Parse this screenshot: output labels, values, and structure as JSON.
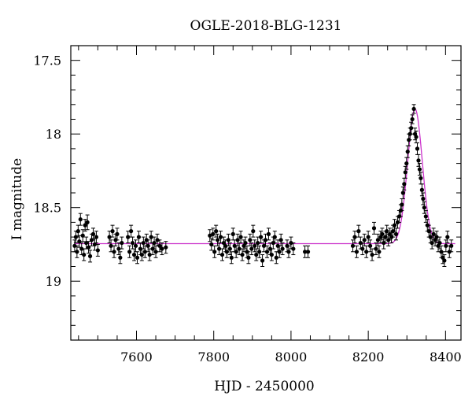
{
  "chart_data": {
    "type": "scatter",
    "title": "OGLE-2018-BLG-1231",
    "xlabel": "HJD - 2450000",
    "ylabel": "I magnitude",
    "xlim": [
      7430,
      8440
    ],
    "ylim": [
      19.4,
      17.4
    ],
    "y_inverted": true,
    "x_ticks": [
      7600,
      7800,
      8000,
      8200,
      8400
    ],
    "y_ticks": [
      17.5,
      18,
      18.5,
      19
    ],
    "y_tick_labels": [
      "17.5",
      "18",
      "18.5",
      "19"
    ],
    "colors": {
      "points": "#000000",
      "model": "#cc33cc"
    },
    "series": [
      {
        "kind": "points_with_errorbars",
        "points": [
          [
            7440,
            18.76,
            0.04
          ],
          [
            7443,
            18.7,
            0.04
          ],
          [
            7446,
            18.8,
            0.04
          ],
          [
            7449,
            18.66,
            0.04
          ],
          [
            7452,
            18.73,
            0.04
          ],
          [
            7455,
            18.58,
            0.04
          ],
          [
            7458,
            18.78,
            0.04
          ],
          [
            7461,
            18.69,
            0.04
          ],
          [
            7464,
            18.82,
            0.04
          ],
          [
            7467,
            18.62,
            0.04
          ],
          [
            7470,
            18.74,
            0.04
          ],
          [
            7473,
            18.6,
            0.05
          ],
          [
            7476,
            18.77,
            0.04
          ],
          [
            7480,
            18.83,
            0.04
          ],
          [
            7484,
            18.72,
            0.04
          ],
          [
            7488,
            18.68,
            0.04
          ],
          [
            7492,
            18.75,
            0.04
          ],
          [
            7496,
            18.7,
            0.04
          ],
          [
            7500,
            18.79,
            0.04
          ],
          [
            7530,
            18.7,
            0.04
          ],
          [
            7534,
            18.76,
            0.04
          ],
          [
            7538,
            18.66,
            0.04
          ],
          [
            7542,
            18.8,
            0.04
          ],
          [
            7546,
            18.72,
            0.04
          ],
          [
            7550,
            18.68,
            0.04
          ],
          [
            7554,
            18.78,
            0.04
          ],
          [
            7558,
            18.84,
            0.04
          ],
          [
            7562,
            18.74,
            0.04
          ],
          [
            7578,
            18.7,
            0.04
          ],
          [
            7582,
            18.8,
            0.04
          ],
          [
            7586,
            18.66,
            0.04
          ],
          [
            7590,
            18.74,
            0.04
          ],
          [
            7594,
            18.82,
            0.04
          ],
          [
            7598,
            18.76,
            0.04
          ],
          [
            7602,
            18.84,
            0.04
          ],
          [
            7606,
            18.7,
            0.04
          ],
          [
            7610,
            18.78,
            0.04
          ],
          [
            7614,
            18.82,
            0.04
          ],
          [
            7618,
            18.74,
            0.04
          ],
          [
            7622,
            18.8,
            0.04
          ],
          [
            7626,
            18.72,
            0.04
          ],
          [
            7630,
            18.76,
            0.04
          ],
          [
            7634,
            18.82,
            0.04
          ],
          [
            7638,
            18.7,
            0.04
          ],
          [
            7642,
            18.78,
            0.04
          ],
          [
            7646,
            18.74,
            0.04
          ],
          [
            7650,
            18.8,
            0.04
          ],
          [
            7654,
            18.72,
            0.04
          ],
          [
            7660,
            18.76,
            0.04
          ],
          [
            7666,
            18.78,
            0.04
          ],
          [
            7676,
            18.77,
            0.04
          ],
          [
            7790,
            18.69,
            0.04
          ],
          [
            7794,
            18.75,
            0.04
          ],
          [
            7798,
            18.68,
            0.04
          ],
          [
            7802,
            18.8,
            0.04
          ],
          [
            7806,
            18.66,
            0.04
          ],
          [
            7810,
            18.72,
            0.04
          ],
          [
            7814,
            18.78,
            0.04
          ],
          [
            7818,
            18.7,
            0.04
          ],
          [
            7822,
            18.82,
            0.04
          ],
          [
            7826,
            18.74,
            0.04
          ],
          [
            7830,
            18.76,
            0.04
          ],
          [
            7834,
            18.8,
            0.04
          ],
          [
            7838,
            18.72,
            0.04
          ],
          [
            7842,
            18.78,
            0.04
          ],
          [
            7846,
            18.84,
            0.04
          ],
          [
            7850,
            18.68,
            0.04
          ],
          [
            7854,
            18.76,
            0.04
          ],
          [
            7858,
            18.8,
            0.04
          ],
          [
            7862,
            18.72,
            0.04
          ],
          [
            7866,
            18.78,
            0.04
          ],
          [
            7870,
            18.7,
            0.04
          ],
          [
            7874,
            18.82,
            0.04
          ],
          [
            7878,
            18.76,
            0.04
          ],
          [
            7882,
            18.74,
            0.04
          ],
          [
            7886,
            18.8,
            0.04
          ],
          [
            7890,
            18.84,
            0.04
          ],
          [
            7894,
            18.72,
            0.04
          ],
          [
            7898,
            18.78,
            0.04
          ],
          [
            7902,
            18.66,
            0.04
          ],
          [
            7906,
            18.76,
            0.04
          ],
          [
            7910,
            18.82,
            0.04
          ],
          [
            7914,
            18.74,
            0.04
          ],
          [
            7918,
            18.8,
            0.04
          ],
          [
            7922,
            18.7,
            0.04
          ],
          [
            7926,
            18.86,
            0.04
          ],
          [
            7930,
            18.76,
            0.04
          ],
          [
            7934,
            18.72,
            0.04
          ],
          [
            7938,
            18.8,
            0.04
          ],
          [
            7942,
            18.68,
            0.04
          ],
          [
            7946,
            18.78,
            0.04
          ],
          [
            7950,
            18.82,
            0.04
          ],
          [
            7954,
            18.74,
            0.04
          ],
          [
            7958,
            18.7,
            0.04
          ],
          [
            7962,
            18.84,
            0.04
          ],
          [
            7966,
            18.76,
            0.04
          ],
          [
            7970,
            18.8,
            0.04
          ],
          [
            7974,
            18.72,
            0.04
          ],
          [
            7978,
            18.78,
            0.04
          ],
          [
            7990,
            18.76,
            0.04
          ],
          [
            7994,
            18.8,
            0.04
          ],
          [
            8000,
            18.74,
            0.04
          ],
          [
            8006,
            18.78,
            0.04
          ],
          [
            8036,
            18.8,
            0.04
          ],
          [
            8044,
            18.8,
            0.04
          ],
          [
            8160,
            18.76,
            0.04
          ],
          [
            8165,
            18.7,
            0.04
          ],
          [
            8170,
            18.8,
            0.04
          ],
          [
            8175,
            18.66,
            0.04
          ],
          [
            8180,
            18.74,
            0.04
          ],
          [
            8185,
            18.78,
            0.04
          ],
          [
            8190,
            18.72,
            0.04
          ],
          [
            8195,
            18.8,
            0.04
          ],
          [
            8200,
            18.7,
            0.04
          ],
          [
            8205,
            18.76,
            0.04
          ],
          [
            8210,
            18.82,
            0.04
          ],
          [
            8215,
            18.64,
            0.04
          ],
          [
            8220,
            18.78,
            0.04
          ],
          [
            8225,
            18.72,
            0.04
          ],
          [
            8228,
            18.8,
            0.04
          ],
          [
            8232,
            18.7,
            0.04
          ],
          [
            8236,
            18.68,
            0.04
          ],
          [
            8240,
            18.74,
            0.04
          ],
          [
            8244,
            18.7,
            0.04
          ],
          [
            8248,
            18.66,
            0.04
          ],
          [
            8252,
            18.72,
            0.04
          ],
          [
            8256,
            18.68,
            0.04
          ],
          [
            8260,
            18.7,
            0.04
          ],
          [
            8264,
            18.66,
            0.04
          ],
          [
            8268,
            18.62,
            0.04
          ],
          [
            8272,
            18.68,
            0.04
          ],
          [
            8276,
            18.6,
            0.04
          ],
          [
            8280,
            18.56,
            0.04
          ],
          [
            8284,
            18.52,
            0.04
          ],
          [
            8287,
            18.48,
            0.04
          ],
          [
            8290,
            18.4,
            0.04
          ],
          [
            8293,
            18.34,
            0.04
          ],
          [
            8296,
            18.26,
            0.04
          ],
          [
            8299,
            18.2,
            0.04
          ],
          [
            8302,
            18.12,
            0.04
          ],
          [
            8305,
            18.04,
            0.04
          ],
          [
            8308,
            18.0,
            0.04
          ],
          [
            8311,
            17.96,
            0.04
          ],
          [
            8314,
            17.9,
            0.03
          ],
          [
            8318,
            17.83,
            0.03
          ],
          [
            8321,
            18.0,
            0.04
          ],
          [
            8324,
            18.02,
            0.04
          ],
          [
            8327,
            18.1,
            0.04
          ],
          [
            8330,
            18.18,
            0.04
          ],
          [
            8333,
            18.24,
            0.04
          ],
          [
            8336,
            18.3,
            0.04
          ],
          [
            8339,
            18.38,
            0.04
          ],
          [
            8342,
            18.44,
            0.04
          ],
          [
            8345,
            18.5,
            0.04
          ],
          [
            8349,
            18.56,
            0.04
          ],
          [
            8353,
            18.62,
            0.04
          ],
          [
            8357,
            18.66,
            0.04
          ],
          [
            8361,
            18.7,
            0.04
          ],
          [
            8365,
            18.74,
            0.04
          ],
          [
            8369,
            18.68,
            0.04
          ],
          [
            8373,
            18.72,
            0.04
          ],
          [
            8377,
            18.7,
            0.04
          ],
          [
            8381,
            18.76,
            0.04
          ],
          [
            8385,
            18.74,
            0.04
          ],
          [
            8389,
            18.8,
            0.04
          ],
          [
            8393,
            18.84,
            0.04
          ],
          [
            8397,
            18.86,
            0.04
          ],
          [
            8401,
            18.76,
            0.04
          ],
          [
            8405,
            18.7,
            0.04
          ],
          [
            8410,
            18.8,
            0.04
          ],
          [
            8415,
            18.76,
            0.04
          ]
        ]
      },
      {
        "kind": "model_curve",
        "baseline": 18.745,
        "peak_mag": 17.83,
        "peak_x": 8321,
        "timescale": 19,
        "x_start": 7440,
        "x_end": 8425
      }
    ]
  }
}
